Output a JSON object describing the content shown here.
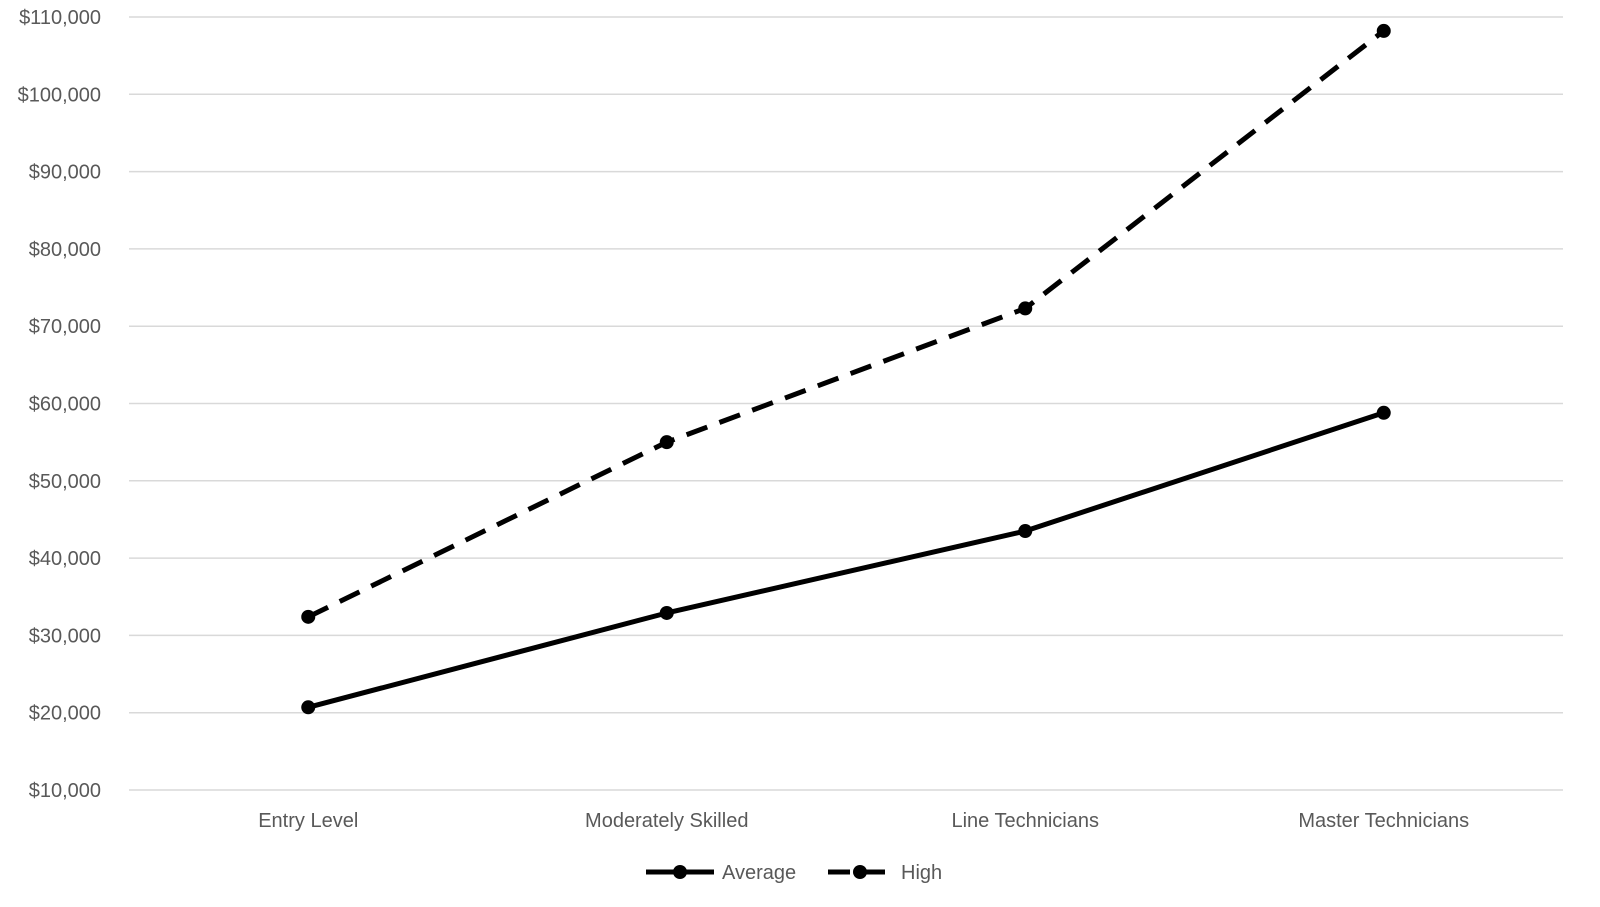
{
  "chart_data": {
    "type": "line",
    "title": "",
    "xlabel": "",
    "ylabel": "",
    "categories": [
      "Entry Level",
      "Moderately Skilled",
      "Line Technicians",
      "Master Technicians"
    ],
    "ylim": [
      10000,
      110000
    ],
    "y_ticks": [
      10000,
      20000,
      30000,
      40000,
      50000,
      60000,
      70000,
      80000,
      90000,
      100000,
      110000
    ],
    "y_tick_labels": [
      "$10,000",
      "$20,000",
      "$30,000",
      "$40,000",
      "$50,000",
      "$60,000",
      "$70,000",
      "$80,000",
      "$90,000",
      "$100,000",
      "$110,000"
    ],
    "grid": true,
    "legend_position": "bottom-center",
    "series": [
      {
        "name": "Average",
        "values": [
          20700,
          32900,
          43500,
          58800
        ],
        "color": "#000000",
        "line_style": "solid",
        "marker": "circle"
      },
      {
        "name": "High",
        "values": [
          32400,
          55000,
          72300,
          108200
        ],
        "color": "#000000",
        "line_style": "dashed",
        "marker": "circle"
      }
    ]
  }
}
